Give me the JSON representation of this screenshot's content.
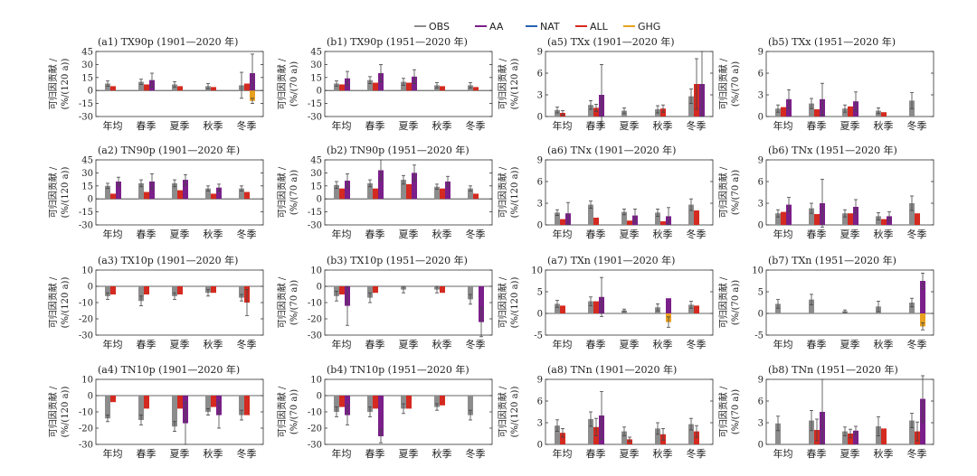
{
  "legend": [
    {
      "name": "OBS",
      "color": "#8c8c8c"
    },
    {
      "name": "AA",
      "color": "#7b1f8a"
    },
    {
      "name": "NAT",
      "color": "#2463b0"
    },
    {
      "name": "ALL",
      "color": "#d42a20"
    },
    {
      "name": "GHG",
      "color": "#e8a020"
    }
  ],
  "categories": [
    "年均",
    "春季",
    "夏季",
    "秋季",
    "冬季"
  ],
  "ylabel_line1": "可归因贡献 /",
  "chart_data": [
    {
      "title": "(a1) TX90p (1901—2020 年)",
      "unit": "(%/(120 a))",
      "type": "bar",
      "ylim": [
        -30,
        45
      ],
      "ticks": [
        -30,
        -15,
        0,
        15,
        30,
        45
      ],
      "series": {
        "OBS": [
          8,
          10,
          7,
          5,
          6
        ],
        "ALL": [
          5,
          7,
          5,
          4,
          8
        ],
        "AA": [
          null,
          12,
          null,
          null,
          20
        ],
        "GHG": [
          null,
          null,
          null,
          null,
          -12
        ]
      },
      "errors": {
        "OBS": [
          3,
          3,
          3,
          3,
          15
        ],
        "AA": [
          null,
          8,
          null,
          null,
          22
        ],
        "GHG": [
          null,
          null,
          null,
          null,
          3
        ]
      }
    },
    {
      "title": "(b1) TX90p (1951—2020 年)",
      "unit": "(%/(70 a))",
      "type": "bar",
      "ylim": [
        -30,
        45
      ],
      "ticks": [
        -30,
        -15,
        0,
        15,
        30,
        45
      ],
      "series": {
        "OBS": [
          8,
          12,
          10,
          6,
          6
        ],
        "ALL": [
          7,
          9,
          9,
          5,
          4
        ],
        "AA": [
          14,
          20,
          16,
          null,
          null
        ]
      },
      "errors": {
        "OBS": [
          3,
          4,
          4,
          3,
          3
        ],
        "AA": [
          8,
          10,
          8,
          null,
          null
        ]
      }
    },
    {
      "title": "(a5) TXx (1901—2020 年)",
      "unit": "(%/(120 a))",
      "type": "bar",
      "ylim": [
        0,
        9
      ],
      "ticks": [
        0,
        3,
        6,
        9
      ],
      "series": {
        "OBS": [
          0.9,
          1.6,
          0.8,
          1.0,
          2.8
        ],
        "ALL": [
          0.5,
          1.2,
          null,
          1.1,
          4.5
        ],
        "AA": [
          null,
          3.0,
          null,
          null,
          4.5
        ]
      },
      "errors": {
        "OBS": [
          0.4,
          0.6,
          0.4,
          0.5,
          1.0
        ],
        "ALL": [
          0.3,
          0.5,
          null,
          0.5,
          3.5
        ],
        "AA": [
          null,
          4.2,
          null,
          null,
          4.5
        ]
      }
    },
    {
      "title": "(b5) TXx (1951—2020 年)",
      "unit": "(%/(70 a))",
      "type": "bar",
      "ylim": [
        0,
        9
      ],
      "ticks": [
        0,
        3,
        6,
        9
      ],
      "series": {
        "OBS": [
          1.1,
          1.8,
          1.1,
          0.8,
          2.2
        ],
        "ALL": [
          1.3,
          1.0,
          1.4,
          0.6,
          null
        ],
        "AA": [
          2.4,
          2.4,
          2.1,
          null,
          null
        ]
      },
      "errors": {
        "OBS": [
          0.5,
          0.7,
          0.5,
          0.4,
          1.1
        ],
        "AA": [
          1.3,
          2.2,
          1.3,
          null,
          null
        ]
      }
    },
    {
      "title": "(a2) TN90p (1901—2020 年)",
      "unit": "(%/(120 a))",
      "type": "bar",
      "ylim": [
        -30,
        45
      ],
      "ticks": [
        -30,
        -15,
        0,
        15,
        30,
        45
      ],
      "series": {
        "OBS": [
          15,
          18,
          18,
          12,
          12
        ],
        "ALL": [
          6,
          8,
          10,
          6,
          8
        ],
        "AA": [
          20,
          20,
          22,
          13,
          null
        ]
      },
      "errors": {
        "OBS": [
          3,
          4,
          4,
          3,
          3
        ],
        "AA": [
          5,
          9,
          6,
          4,
          null
        ]
      }
    },
    {
      "title": "(b2) TN90p (1951—2020 年)",
      "unit": "(%/(70 a))",
      "type": "bar",
      "ylim": [
        -30,
        45
      ],
      "ticks": [
        -30,
        -15,
        0,
        15,
        30,
        45
      ],
      "series": {
        "OBS": [
          16,
          18,
          22,
          14,
          12
        ],
        "ALL": [
          12,
          12,
          17,
          12,
          6
        ],
        "AA": [
          21,
          33,
          30,
          20,
          null
        ]
      },
      "errors": {
        "OBS": [
          4,
          4,
          5,
          3,
          3
        ],
        "AA": [
          8,
          12,
          9,
          6,
          null
        ]
      }
    },
    {
      "title": "(a6) TNx (1901—2020 年)",
      "unit": "(%/(120 a))",
      "type": "bar",
      "ylim": [
        0,
        9
      ],
      "ticks": [
        0,
        3,
        6,
        9
      ],
      "series": {
        "OBS": [
          1.7,
          2.8,
          1.8,
          1.7,
          2.8
        ],
        "ALL": [
          0.8,
          1.0,
          0.6,
          0.5,
          2.0
        ],
        "AA": [
          1.6,
          null,
          1.3,
          1.2,
          null
        ]
      },
      "errors": {
        "OBS": [
          0.4,
          0.5,
          0.4,
          0.5,
          0.8
        ],
        "AA": [
          1.5,
          null,
          0.9,
          1.2,
          null
        ]
      }
    },
    {
      "title": "(b6) TNx (1951—2020 年)",
      "unit": "(%/(70 a))",
      "type": "bar",
      "ylim": [
        0,
        9
      ],
      "ticks": [
        0,
        3,
        6,
        9
      ],
      "series": {
        "OBS": [
          1.6,
          2.3,
          1.6,
          1.2,
          3.0
        ],
        "ALL": [
          1.8,
          1.5,
          1.6,
          0.8,
          1.6
        ],
        "AA": [
          2.8,
          3.0,
          2.5,
          1.2,
          null
        ]
      },
      "errors": {
        "OBS": [
          0.5,
          0.7,
          0.5,
          0.5,
          1.0
        ],
        "AA": [
          1.0,
          3.3,
          1.0,
          0.6,
          null
        ]
      }
    },
    {
      "title": "(a3) TX10p (1901—2020 年)",
      "unit": "(%/(120 a))",
      "type": "bar",
      "ylim": [
        -30,
        10
      ],
      "ticks": [
        -30,
        -20,
        -10,
        0,
        10
      ],
      "series": {
        "OBS": [
          -6,
          -9,
          -6,
          -4,
          -7
        ],
        "ALL": [
          -5,
          -5,
          -5,
          -4,
          -10
        ],
        "AA": [
          null,
          null,
          null,
          null,
          null
        ]
      },
      "errors": {
        "OBS": [
          2,
          3,
          2,
          2,
          2
        ],
        "ALL": [
          null,
          null,
          null,
          null,
          8
        ]
      }
    },
    {
      "title": "(b3) TX10p (1951—2020 年)",
      "unit": "(%/(70 a))",
      "type": "bar",
      "ylim": [
        -30,
        10
      ],
      "ticks": [
        -30,
        -20,
        -10,
        0,
        10
      ],
      "series": {
        "OBS": [
          -6,
          -7,
          -2,
          -2,
          -8
        ],
        "ALL": [
          -5,
          -4,
          null,
          -4,
          null
        ],
        "AA": [
          -12,
          null,
          null,
          null,
          -22
        ]
      },
      "errors": {
        "OBS": [
          3,
          3,
          2,
          2,
          3
        ],
        "AA": [
          12,
          null,
          null,
          null,
          9
        ]
      }
    },
    {
      "title": "(a7) TXn (1901—2020 年)",
      "unit": "(%/(120 a))",
      "type": "bar",
      "ylim": [
        -5,
        10
      ],
      "ticks": [
        -5,
        0,
        5,
        10
      ],
      "series": {
        "OBS": [
          2.2,
          2.8,
          0.7,
          1.4,
          2.0
        ],
        "ALL": [
          1.8,
          2.8,
          null,
          null,
          1.8
        ],
        "AA": [
          null,
          3.8,
          null,
          3.5,
          null
        ],
        "GHG": [
          null,
          null,
          null,
          -2.0,
          null
        ]
      },
      "errors": {
        "OBS": [
          0.8,
          1.0,
          0.3,
          0.8,
          0.8
        ],
        "AA": [
          null,
          4.5,
          null,
          null,
          null
        ],
        "GHG": [
          null,
          null,
          null,
          1.2,
          null
        ]
      }
    },
    {
      "title": "(b7) TXn (1951—2020 年)",
      "unit": "(%/(70 a))",
      "type": "bar",
      "ylim": [
        -5,
        10
      ],
      "ticks": [
        -5,
        0,
        5,
        10
      ],
      "series": {
        "OBS": [
          2.2,
          3.2,
          0.5,
          1.6,
          2.5
        ],
        "AA": [
          null,
          null,
          null,
          null,
          7.5
        ],
        "GHG": [
          null,
          null,
          null,
          null,
          -3.0
        ]
      },
      "errors": {
        "OBS": [
          1.0,
          1.2,
          0.3,
          1.2,
          1.0
        ],
        "AA": [
          null,
          null,
          null,
          null,
          1.8
        ],
        "GHG": [
          null,
          null,
          null,
          null,
          0.8
        ]
      }
    },
    {
      "title": "(a4) TN10p (1901—2020 年)",
      "unit": "(%/(120 a))",
      "type": "bar",
      "ylim": [
        -30,
        10
      ],
      "ticks": [
        -30,
        -20,
        -10,
        0,
        10
      ],
      "series": {
        "OBS": [
          -14,
          -15,
          -19,
          -10,
          -12
        ],
        "ALL": [
          -4,
          -8,
          -8,
          -7,
          -12
        ],
        "AA": [
          null,
          null,
          -17,
          -12,
          null
        ]
      },
      "errors": {
        "OBS": [
          2,
          3,
          3,
          2,
          3
        ],
        "AA": [
          null,
          null,
          13,
          8,
          null
        ]
      }
    },
    {
      "title": "(b4) TN10p (1951—2020 年)",
      "unit": "(%/(70 a))",
      "type": "bar",
      "ylim": [
        -30,
        10
      ],
      "ticks": [
        -30,
        -20,
        -10,
        0,
        10
      ],
      "series": {
        "OBS": [
          -10,
          -10,
          -8,
          -7,
          -12
        ],
        "ALL": [
          -7,
          -8,
          -8,
          -6,
          null
        ],
        "AA": [
          -12,
          -25,
          null,
          null,
          null
        ]
      },
      "errors": {
        "OBS": [
          3,
          3,
          3,
          2,
          3
        ],
        "AA": [
          6,
          4,
          null,
          null,
          null
        ]
      }
    },
    {
      "title": "(a8) TNn (1901—2020 年)",
      "unit": "(%/(120 a))",
      "type": "bar",
      "ylim": [
        0,
        9
      ],
      "ticks": [
        0,
        3,
        6,
        9
      ],
      "series": {
        "OBS": [
          2.6,
          3.5,
          1.8,
          2.2,
          2.8
        ],
        "ALL": [
          1.6,
          2.4,
          0.7,
          1.4,
          1.8
        ],
        "AA": [
          null,
          4.0,
          null,
          null,
          null
        ]
      },
      "errors": {
        "OBS": [
          0.8,
          1.0,
          0.6,
          0.8,
          0.8
        ],
        "ALL": [
          0.6,
          1.2,
          0.3,
          0.8,
          0.8
        ],
        "AA": [
          null,
          3.3,
          null,
          null,
          null
        ]
      }
    },
    {
      "title": "(b8) TNn (1951—2020 年)",
      "unit": "(%/(70 a))",
      "type": "bar",
      "ylim": [
        0,
        9
      ],
      "ticks": [
        0,
        3,
        6,
        9
      ],
      "series": {
        "OBS": [
          2.9,
          3.3,
          1.8,
          2.5,
          3.3
        ],
        "ALL": [
          null,
          2.0,
          1.5,
          2.2,
          1.8
        ],
        "AA": [
          null,
          4.5,
          1.9,
          null,
          6.3
        ]
      },
      "errors": {
        "OBS": [
          1.0,
          1.4,
          0.6,
          1.3,
          1.0
        ],
        "ALL": [
          null,
          1.5,
          0.6,
          null,
          1.3
        ],
        "AA": [
          null,
          4.5,
          0.6,
          null,
          3.2
        ]
      }
    }
  ]
}
